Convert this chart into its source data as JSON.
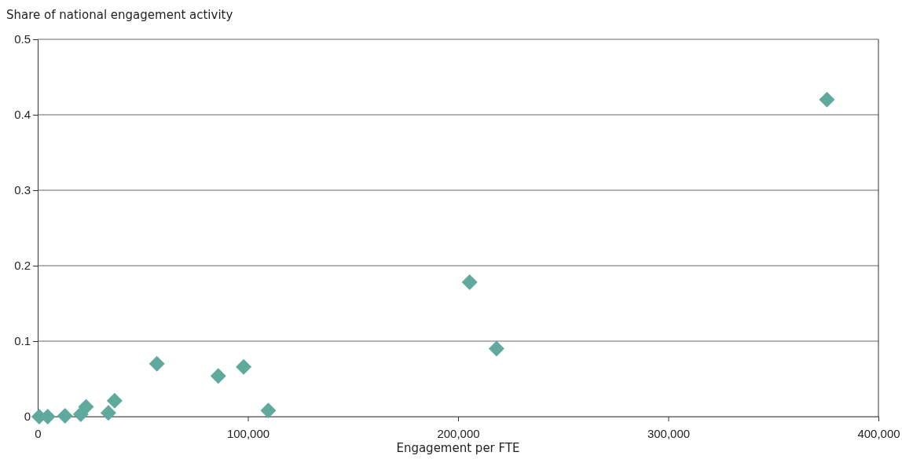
{
  "chart_data": {
    "type": "scatter",
    "ylabel": "Share of national engagement activity",
    "xlabel": "Engagement per FTE",
    "x": [
      700,
      4750,
      12000,
      13000,
      20500,
      23000,
      32500,
      33600,
      36600,
      56700,
      85900,
      98000,
      109700,
      205500,
      218300,
      375500
    ],
    "values": [
      0,
      0,
      null,
      0.001,
      0.003,
      0.013,
      null,
      0.005,
      0.021,
      0.07,
      0.054,
      0.066,
      0.008,
      0.178,
      0.09,
      0.42
    ],
    "color": "#5fa99d",
    "marker": "diamond",
    "xlim": [
      0,
      400000
    ],
    "xticks": [
      {
        "value": 0,
        "label": "0"
      },
      {
        "value": 100000,
        "label": "100,000"
      },
      {
        "value": 200000,
        "label": "200,000"
      },
      {
        "value": 300000,
        "label": "300,000"
      },
      {
        "value": 400000,
        "label": "400,000"
      }
    ],
    "ylim": [
      0,
      0.5
    ],
    "yticks": [
      0,
      0.1,
      0.2,
      0.3,
      0.4,
      0.5
    ],
    "grid": "y"
  }
}
